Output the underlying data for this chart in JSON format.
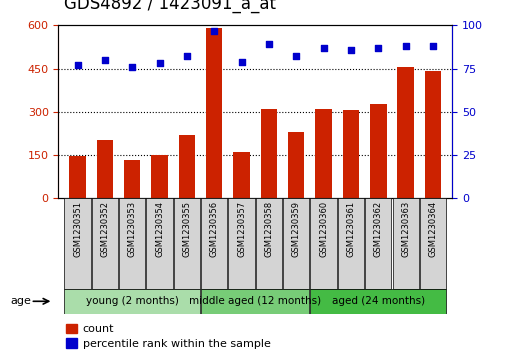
{
  "title": "GDS4892 / 1423091_a_at",
  "samples": [
    "GSM1230351",
    "GSM1230352",
    "GSM1230353",
    "GSM1230354",
    "GSM1230355",
    "GSM1230356",
    "GSM1230357",
    "GSM1230358",
    "GSM1230359",
    "GSM1230360",
    "GSM1230361",
    "GSM1230362",
    "GSM1230363",
    "GSM1230364"
  ],
  "counts": [
    145,
    200,
    130,
    150,
    220,
    590,
    160,
    310,
    230,
    310,
    305,
    325,
    455,
    440
  ],
  "percentiles": [
    77,
    80,
    76,
    78,
    82,
    97,
    79,
    89,
    82,
    87,
    86,
    87,
    88,
    88
  ],
  "bar_color": "#cc2200",
  "dot_color": "#0000cc",
  "ylim_left": [
    0,
    600
  ],
  "ylim_right": [
    0,
    100
  ],
  "yticks_left": [
    0,
    150,
    300,
    450,
    600
  ],
  "yticks_right": [
    0,
    25,
    50,
    75,
    100
  ],
  "grid_values": [
    150,
    300,
    450
  ],
  "groups": [
    {
      "label": "young (2 months)",
      "start": 0,
      "end": 5,
      "color": "#aaddaa"
    },
    {
      "label": "middle aged (12 months)",
      "start": 5,
      "end": 9,
      "color": "#77cc77"
    },
    {
      "label": "aged (24 months)",
      "start": 9,
      "end": 14,
      "color": "#44bb44"
    }
  ],
  "age_label": "age",
  "legend_count_label": "count",
  "legend_pct_label": "percentile rank within the sample",
  "title_fontsize": 12,
  "tick_fontsize": 8,
  "background_color": "#ffffff",
  "plot_bg_color": "#ffffff",
  "tick_color_left": "#cc2200",
  "tick_color_right": "#0000cc",
  "cell_color": "#d4d4d4"
}
